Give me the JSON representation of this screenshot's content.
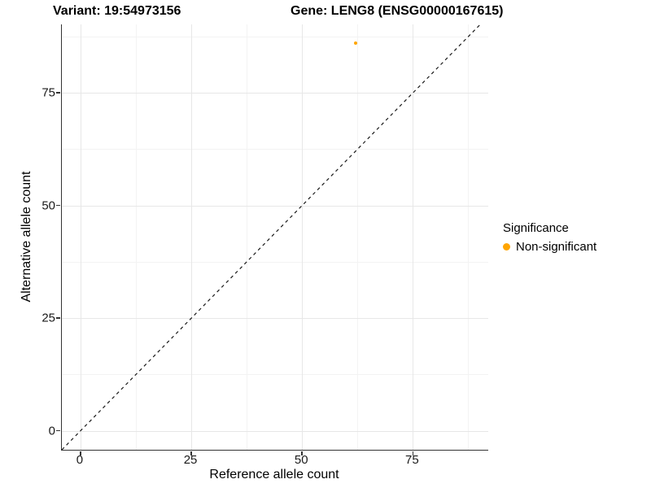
{
  "titles": {
    "variant": "Variant: 19:54973156",
    "gene": "Gene: LENG8 (ENSG00000167615)"
  },
  "chart_data": {
    "type": "scatter",
    "xlabel": "Reference allele count",
    "ylabel": "Alternative allele count",
    "xticks": [
      0,
      25,
      50,
      75
    ],
    "yticks": [
      0,
      25,
      50,
      75
    ],
    "xlim": [
      -4.2,
      92.0
    ],
    "ylim": [
      -4.2,
      90.2
    ],
    "grid": "major and minor gridlines, light gray on white",
    "minor_step": 12.5,
    "points": [
      {
        "x": 62,
        "y": 86,
        "series": "Non-significant"
      }
    ],
    "reference_line": {
      "type": "identity y=x",
      "style": "dashed",
      "color": "#1a1a1a"
    },
    "legend": {
      "title": "Significance",
      "position": "right",
      "items": [
        {
          "label": "Non-significant",
          "color": "#FFA500"
        }
      ]
    }
  },
  "colors": {
    "point": "#FFA500",
    "grid_major": "#e7e7e7",
    "grid_minor": "#f3f3f3",
    "axis_line": "#333333",
    "text": "#000000"
  }
}
